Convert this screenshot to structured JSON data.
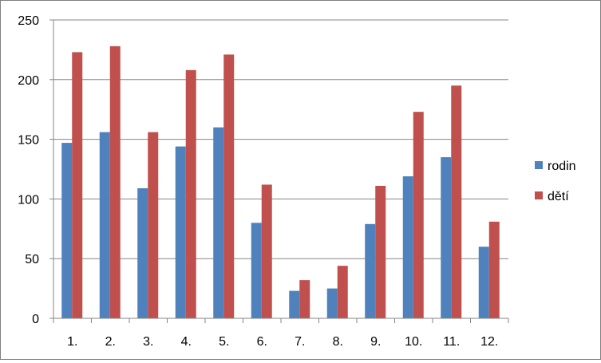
{
  "chart_data": {
    "type": "bar",
    "title": "",
    "xlabel": "",
    "ylabel": "",
    "categories": [
      "1.",
      "2.",
      "3.",
      "4.",
      "5.",
      "6.",
      "7.",
      "8.",
      "9.",
      "10.",
      "11.",
      "12."
    ],
    "series": [
      {
        "name": "rodin",
        "color": "#4f81bd",
        "values": [
          147,
          156,
          109,
          144,
          160,
          80,
          23,
          25,
          79,
          119,
          135,
          60
        ]
      },
      {
        "name": "dětí",
        "color": "#c0504d",
        "values": [
          223,
          228,
          156,
          208,
          221,
          112,
          32,
          44,
          111,
          173,
          195,
          81
        ]
      }
    ],
    "ylim": [
      0,
      250
    ],
    "yticks": [
      "0",
      "50",
      "100",
      "150",
      "200",
      "250"
    ],
    "grid": true,
    "legend": "right"
  }
}
